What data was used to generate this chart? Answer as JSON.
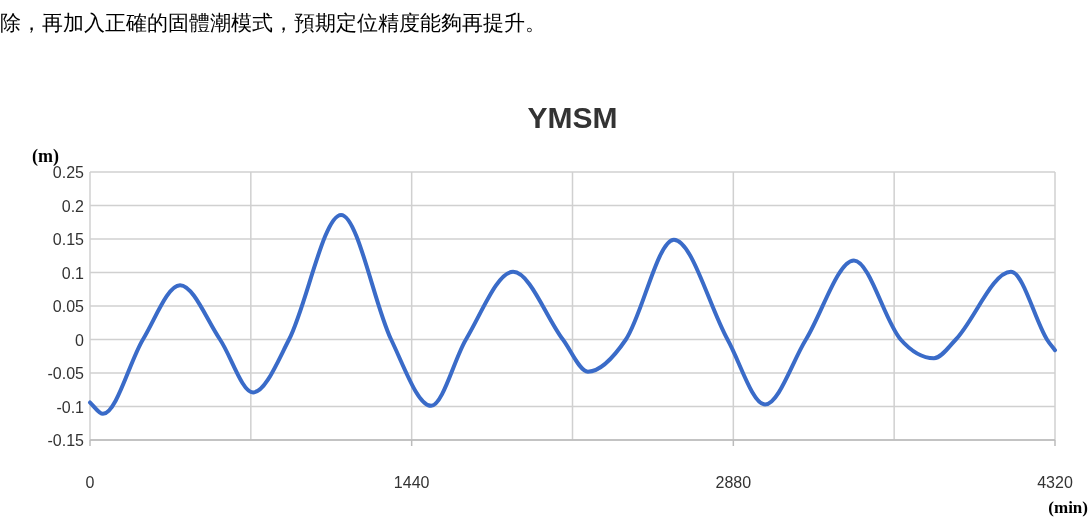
{
  "chart_data": {
    "type": "line",
    "title": "YMSM",
    "ylabel": "(m)",
    "xlabel": "(min)",
    "annotations": [
      "除，再加入正確的固體潮模式，預期定位精度能夠再提升。"
    ],
    "x": [
      0,
      58,
      237,
      403,
      582,
      730,
      891,
      1124,
      1348,
      1527,
      1683,
      1894,
      2117,
      2229,
      2399,
      2614,
      2854,
      3022,
      3205,
      3420,
      3629,
      3778,
      3876,
      4123,
      4284,
      4320
    ],
    "series": [
      {
        "color": "#3a6bc8",
        "values": [
          -0.094,
          -0.111,
          0,
          0.081,
          0,
          -0.079,
          0,
          0.186,
          0,
          -0.099,
          0,
          0.101,
          0,
          -0.048,
          0,
          0.149,
          0,
          -0.097,
          0,
          0.118,
          0,
          -0.028,
          0,
          0.101,
          0,
          -0.016
        ]
      }
    ],
    "xlim": [
      0,
      4320
    ],
    "xticks": [
      0,
      {
        "value": 720,
        "label": null
      },
      1440,
      {
        "value": 2160,
        "label": null
      },
      2880,
      {
        "value": 3600,
        "label": null
      },
      4320
    ],
    "ylim": [
      -0.15,
      0.25
    ],
    "yticks": [
      -0.15,
      -0.1,
      -0.05,
      0,
      0.05,
      0.1,
      0.15,
      0.2,
      0.25
    ],
    "grid": true,
    "marker": "none",
    "line_style": "solid"
  }
}
